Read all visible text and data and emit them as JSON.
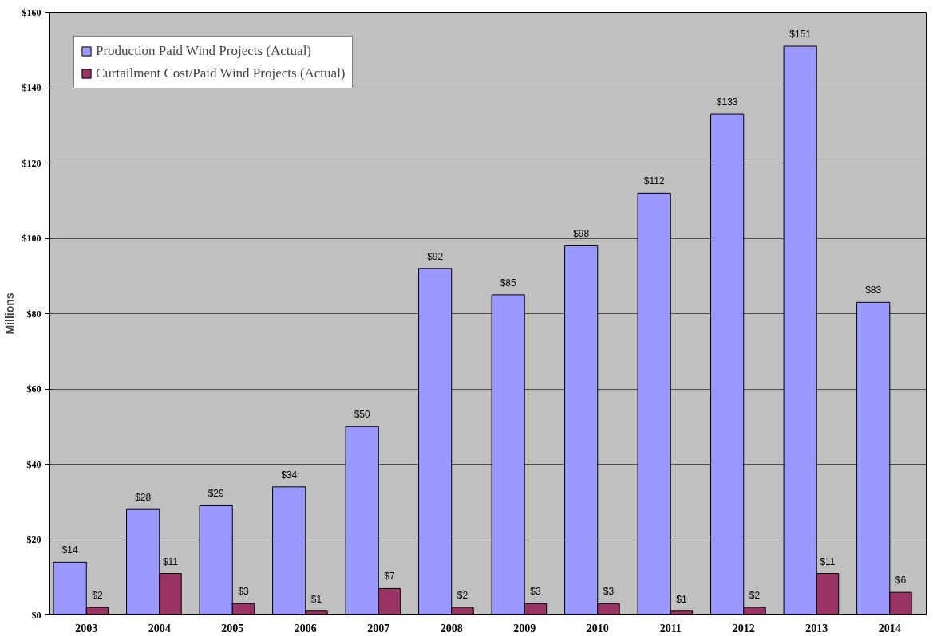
{
  "chart_data": {
    "type": "bar",
    "ylabel": "Millions",
    "categories": [
      "2003",
      "2004",
      "2005",
      "2006",
      "2007",
      "2008",
      "2009",
      "2010",
      "2011",
      "2012",
      "2013",
      "2014"
    ],
    "series": [
      {
        "name": "Production Paid Wind Projects (Actual)",
        "color": "#9999ff",
        "values": [
          14,
          28,
          29,
          34,
          50,
          92,
          85,
          98,
          112,
          133,
          151,
          83
        ],
        "value_labels": [
          "$14",
          "$28",
          "$29",
          "$34",
          "$50",
          "$92",
          "$85",
          "$98",
          "$112",
          "$133",
          "$151",
          "$83"
        ]
      },
      {
        "name": "Curtailment Cost/Paid Wind Projects (Actual)",
        "color": "#993366",
        "values": [
          2,
          11,
          3,
          1,
          7,
          2,
          3,
          3,
          1,
          2,
          11,
          6
        ],
        "value_labels": [
          "$2",
          "$11",
          "$3",
          "$1",
          "$7",
          "$2",
          "$3",
          "$3",
          "$1",
          "$2",
          "$11",
          "$6"
        ]
      }
    ],
    "ylim": [
      0,
      160
    ],
    "yticks": [
      {
        "value": 0,
        "label": "$0"
      },
      {
        "value": 20,
        "label": "$20"
      },
      {
        "value": 40,
        "label": "$40"
      },
      {
        "value": 60,
        "label": "$60"
      },
      {
        "value": 80,
        "label": "$80"
      },
      {
        "value": 100,
        "label": "$100"
      },
      {
        "value": 120,
        "label": "$120"
      },
      {
        "value": 140,
        "label": "$140"
      },
      {
        "value": 160,
        "label": "$160"
      }
    ],
    "grid": "y",
    "legend": "top left"
  }
}
